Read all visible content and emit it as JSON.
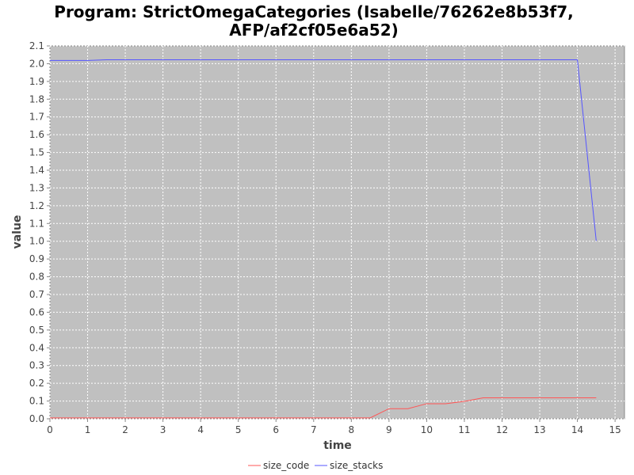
{
  "chart_data": {
    "type": "line",
    "title_lines": [
      "Program: StrictOmegaCategories (Isabelle/76262e8b53f7,",
      "AFP/af2cf05e6a52)"
    ],
    "xlabel": "time",
    "ylabel": "value",
    "xlim": [
      0,
      15.25
    ],
    "ylim": [
      0,
      2.1
    ],
    "xticks": [
      0,
      1,
      2,
      3,
      4,
      5,
      6,
      7,
      8,
      9,
      10,
      11,
      12,
      13,
      14,
      15
    ],
    "xtick_labels": [
      "0",
      "1",
      "2",
      "3",
      "4",
      "5",
      "6",
      "7",
      "8",
      "9",
      "10",
      "11",
      "12",
      "13",
      "14",
      "15"
    ],
    "yticks": [
      0,
      0.1,
      0.2,
      0.3,
      0.4,
      0.5,
      0.6,
      0.7,
      0.8,
      0.9,
      1.0,
      1.1,
      1.2,
      1.3,
      1.4,
      1.5,
      1.6,
      1.7,
      1.8,
      1.9,
      2.0,
      2.1
    ],
    "ytick_labels": [
      "0.0",
      "0.1",
      "0.2",
      "0.3",
      "0.4",
      "0.5",
      "0.6",
      "0.7",
      "0.8",
      "0.9",
      "1.0",
      "1.1",
      "1.2",
      "1.3",
      "1.4",
      "1.5",
      "1.6",
      "1.7",
      "1.8",
      "1.9",
      "2.0",
      "2.1"
    ],
    "grid": true,
    "legend_placement": "bottom-center",
    "plot_background": "#c0c0c0",
    "series": [
      {
        "name": "size_code",
        "color": "#ff5555",
        "x": [
          0,
          0.5,
          1,
          1.5,
          2,
          2.5,
          3,
          3.5,
          4,
          4.5,
          5,
          5.5,
          6,
          6.5,
          7,
          7.5,
          8,
          8.5,
          9,
          9.5,
          10,
          10.5,
          11,
          11.5,
          12,
          12.5,
          13,
          13.5,
          14,
          14.5
        ],
        "values": [
          0.005,
          0.005,
          0.005,
          0.005,
          0.005,
          0.005,
          0.005,
          0.005,
          0.005,
          0.005,
          0.005,
          0.005,
          0.005,
          0.005,
          0.005,
          0.005,
          0.005,
          0.005,
          0.057,
          0.057,
          0.085,
          0.085,
          0.098,
          0.118,
          0.118,
          0.118,
          0.118,
          0.118,
          0.118,
          0.118
        ]
      },
      {
        "name": "size_stacks",
        "color": "#5555ff",
        "x": [
          0,
          0.5,
          1,
          1.5,
          2,
          2.5,
          3,
          3.5,
          4,
          4.5,
          5,
          5.5,
          6,
          6.5,
          7,
          7.5,
          8,
          8.5,
          9,
          9.5,
          10,
          10.5,
          11,
          11.5,
          12,
          12.5,
          13,
          13.5,
          14,
          14.5
        ],
        "values": [
          2.018,
          2.018,
          2.018,
          2.022,
          2.022,
          2.022,
          2.022,
          2.022,
          2.022,
          2.022,
          2.022,
          2.022,
          2.022,
          2.022,
          2.022,
          2.022,
          2.022,
          2.022,
          2.022,
          2.022,
          2.022,
          2.022,
          2.022,
          2.022,
          2.022,
          2.022,
          2.022,
          2.022,
          2.022,
          1.002
        ]
      }
    ]
  }
}
